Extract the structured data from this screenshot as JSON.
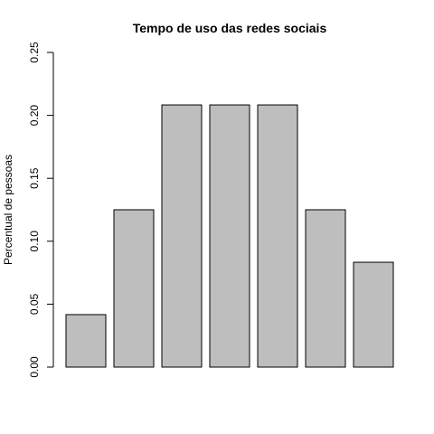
{
  "chart_data": {
    "type": "bar",
    "title": "Tempo de uso das redes sociais",
    "xlabel": "",
    "ylabel": "Percentual de pessoas",
    "categories": [
      "",
      "",
      "",
      "",
      "",
      "",
      ""
    ],
    "values": [
      0.0417,
      0.125,
      0.2083,
      0.2083,
      0.2083,
      0.125,
      0.0833
    ],
    "ylim": [
      0,
      0.25
    ],
    "yticks": [
      "0.00",
      "0.05",
      "0.10",
      "0.15",
      "0.20",
      "0.25"
    ],
    "grid": false,
    "legend": "none",
    "colors": {
      "bar_fill": "#bebebe",
      "bar_stroke": "#000000"
    }
  }
}
